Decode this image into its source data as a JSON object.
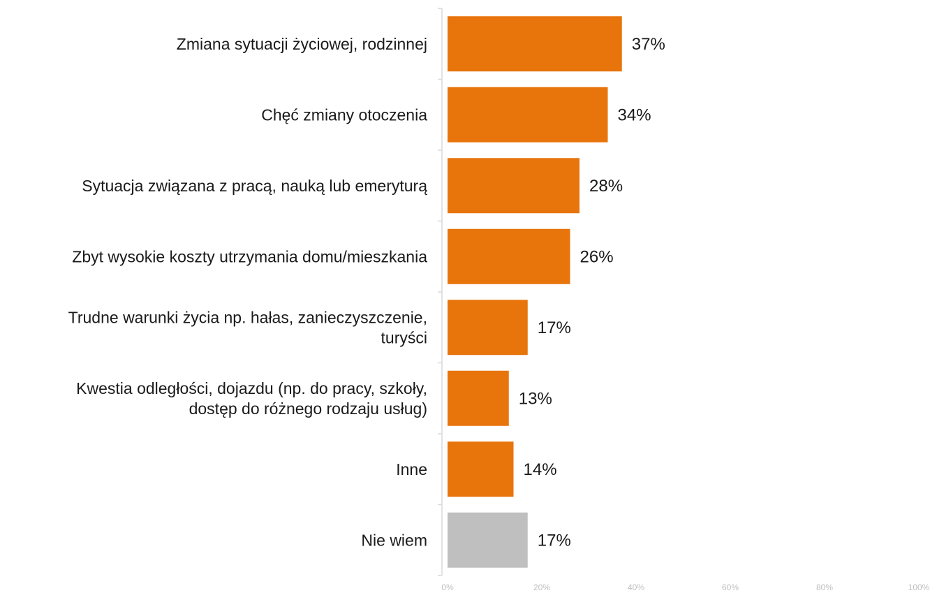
{
  "chart_data": {
    "type": "bar",
    "orientation": "horizontal",
    "title": "",
    "xlabel": "",
    "ylabel": "",
    "xlim": [
      0,
      100
    ],
    "grid": false,
    "legend": "none",
    "categories": [
      [
        "Zmiana sytuacji życiowej, rodzinnej"
      ],
      [
        "Chęć zmiany otoczenia"
      ],
      [
        "Sytuacja związana z pracą, nauką lub emeryturą"
      ],
      [
        "Zbyt wysokie koszty utrzymania domu/mieszkania"
      ],
      [
        "Trudne warunki życia np. hałas, zanieczyszczenie,",
        "turyści"
      ],
      [
        "Kwestia odległości, dojazdu (np. do pracy, szkoły,",
        "dostęp do różnego rodzaju usług)"
      ],
      [
        "Inne"
      ],
      [
        "Nie wiem"
      ]
    ],
    "values": [
      37,
      34,
      28,
      26,
      17,
      13,
      14,
      17
    ],
    "value_labels": [
      "37%",
      "34%",
      "28%",
      "26%",
      "17%",
      "13%",
      "14%",
      "17%"
    ],
    "bar_colors": [
      "#e8740c",
      "#e8740c",
      "#e8740c",
      "#e8740c",
      "#e8740c",
      "#e8740c",
      "#e8740c",
      "#bfbfbf"
    ],
    "x_ticks": [
      0,
      20,
      40,
      60,
      80,
      100
    ],
    "x_tick_labels": [
      "0%",
      "20%",
      "40%",
      "60%",
      "80%",
      "100%"
    ],
    "axis_color": "#d9d9d9"
  }
}
